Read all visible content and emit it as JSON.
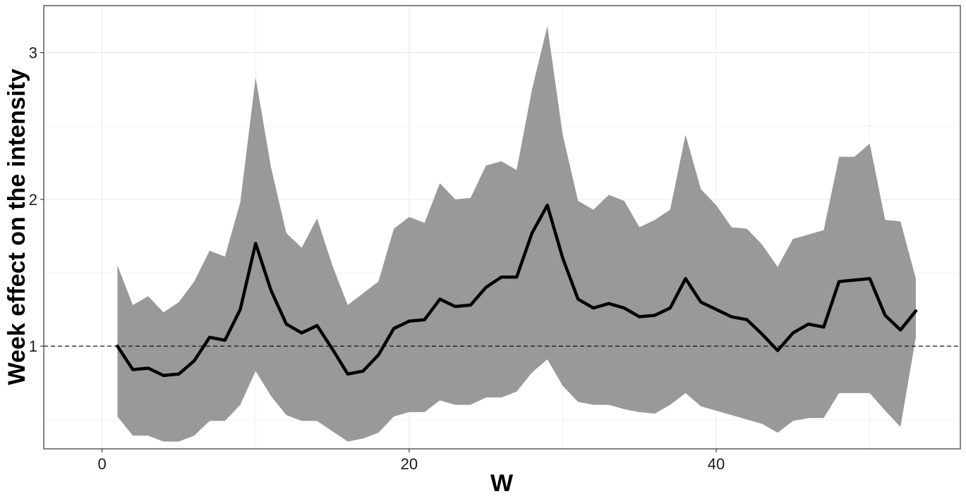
{
  "chart_data": {
    "type": "line",
    "title": "",
    "xlabel": "W",
    "ylabel": "Week effect on the intensity",
    "xlim": [
      -3.8,
      55.9
    ],
    "ylim": [
      0.3,
      3.32
    ],
    "x_ticks": [
      0,
      20,
      40
    ],
    "x_tick_labels": [
      "0",
      "20",
      "40"
    ],
    "y_ticks": [
      1,
      2,
      3
    ],
    "y_tick_labels": [
      "1",
      "2",
      "3"
    ],
    "reference_line": {
      "y": 1,
      "style": "dashed"
    },
    "grid": true,
    "legend": "none",
    "colors": {
      "band": "#999999",
      "line": "#000000",
      "grid": "#ebebeb",
      "panel_border": "#333333"
    },
    "x": [
      1,
      2,
      3,
      4,
      5,
      6,
      7,
      8,
      9,
      10,
      11,
      12,
      13,
      14,
      15,
      16,
      17,
      18,
      19,
      20,
      21,
      22,
      23,
      24,
      25,
      26,
      27,
      28,
      29,
      30,
      31,
      32,
      33,
      34,
      35,
      36,
      37,
      38,
      39,
      40,
      41,
      42,
      43,
      44,
      45,
      46,
      47,
      48,
      49,
      50,
      51,
      52,
      53
    ],
    "series": [
      {
        "role": "estimate",
        "values": [
          1.0,
          0.84,
          0.85,
          0.8,
          0.81,
          0.9,
          1.06,
          1.04,
          1.25,
          1.7,
          1.38,
          1.15,
          1.09,
          1.14,
          0.98,
          0.81,
          0.83,
          0.94,
          1.12,
          1.17,
          1.18,
          1.32,
          1.27,
          1.28,
          1.4,
          1.47,
          1.47,
          1.77,
          1.96,
          1.6,
          1.32,
          1.26,
          1.29,
          1.26,
          1.2,
          1.21,
          1.26,
          1.46,
          1.3,
          1.25,
          1.2,
          1.18,
          1.08,
          0.97,
          1.09,
          1.15,
          1.13,
          1.44,
          1.45,
          1.46,
          1.21,
          1.11,
          1.24
        ]
      },
      {
        "role": "upper",
        "values": [
          1.55,
          1.28,
          1.34,
          1.23,
          1.3,
          1.44,
          1.65,
          1.61,
          1.98,
          2.83,
          2.22,
          1.77,
          1.67,
          1.87,
          1.55,
          1.28,
          1.36,
          1.44,
          1.8,
          1.88,
          1.84,
          2.11,
          2.0,
          2.01,
          2.23,
          2.26,
          2.2,
          2.75,
          3.18,
          2.44,
          1.99,
          1.93,
          2.03,
          1.99,
          1.81,
          1.86,
          1.93,
          2.44,
          2.07,
          1.96,
          1.81,
          1.8,
          1.69,
          1.54,
          1.73,
          1.76,
          1.79,
          2.29,
          2.29,
          2.38,
          1.86,
          1.85,
          1.46
        ]
      },
      {
        "role": "lower",
        "values": [
          0.52,
          0.39,
          0.39,
          0.35,
          0.35,
          0.39,
          0.49,
          0.49,
          0.6,
          0.83,
          0.66,
          0.53,
          0.49,
          0.49,
          0.42,
          0.35,
          0.37,
          0.41,
          0.52,
          0.55,
          0.55,
          0.63,
          0.6,
          0.6,
          0.65,
          0.65,
          0.69,
          0.82,
          0.91,
          0.73,
          0.62,
          0.6,
          0.6,
          0.57,
          0.55,
          0.54,
          0.6,
          0.68,
          0.59,
          0.56,
          0.53,
          0.5,
          0.47,
          0.41,
          0.49,
          0.51,
          0.51,
          0.68,
          0.68,
          0.68,
          0.56,
          0.45,
          1.06
        ]
      }
    ]
  }
}
